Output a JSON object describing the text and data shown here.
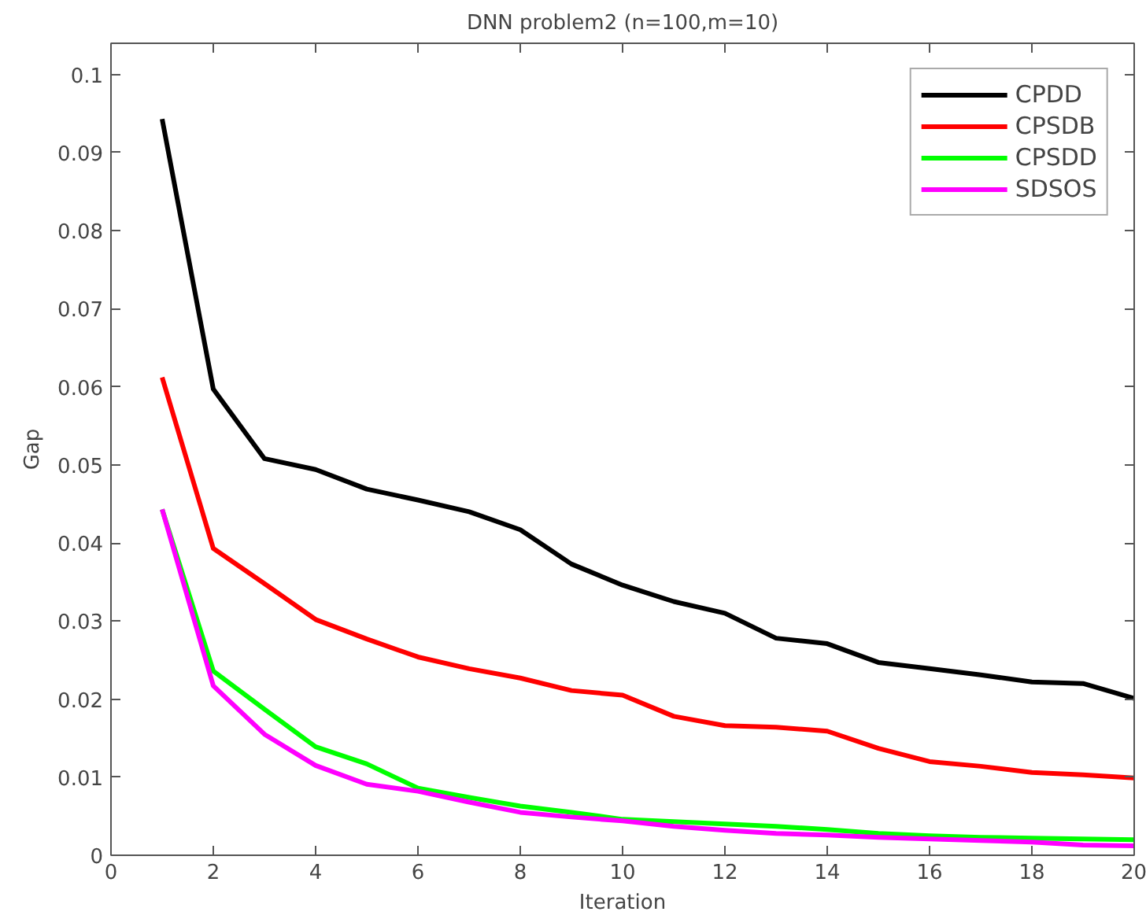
{
  "chart_data": {
    "type": "line",
    "title": "DNN problem2 (n=100,m=10)",
    "xlabel": "Iteration",
    "ylabel": "Gap",
    "x": [
      1,
      2,
      3,
      4,
      5,
      6,
      7,
      8,
      9,
      10,
      11,
      12,
      13,
      14,
      15,
      16,
      17,
      18,
      19,
      20
    ],
    "series": [
      {
        "name": "CPDD",
        "color": "#000000",
        "values": [
          0.0943,
          0.0597,
          0.0508,
          0.0494,
          0.0469,
          0.0455,
          0.044,
          0.0417,
          0.0373,
          0.0346,
          0.0325,
          0.031,
          0.0278,
          0.0271,
          0.0247,
          0.0239,
          0.0231,
          0.0222,
          0.022,
          0.0201
        ]
      },
      {
        "name": "CPSDB",
        "color": "#ff0000",
        "values": [
          0.0612,
          0.0393,
          0.0348,
          0.0302,
          0.0277,
          0.0254,
          0.0239,
          0.0227,
          0.0211,
          0.0205,
          0.0178,
          0.0166,
          0.0164,
          0.0159,
          0.0137,
          0.012,
          0.0114,
          0.0106,
          0.0103,
          0.0099
        ]
      },
      {
        "name": "CPSDD",
        "color": "#00ff00",
        "values": [
          0.0443,
          0.0236,
          0.0187,
          0.0139,
          0.0117,
          0.0086,
          0.0074,
          0.0063,
          0.0055,
          0.0046,
          0.0043,
          0.004,
          0.0037,
          0.0033,
          0.0028,
          0.0025,
          0.0023,
          0.0022,
          0.0021,
          0.002
        ]
      },
      {
        "name": "SDSOS",
        "color": "#ff00ff",
        "values": [
          0.0443,
          0.0217,
          0.0155,
          0.0115,
          0.0091,
          0.0082,
          0.0068,
          0.0055,
          0.0049,
          0.0044,
          0.0037,
          0.0032,
          0.0028,
          0.0026,
          0.0023,
          0.0021,
          0.0019,
          0.0017,
          0.0013,
          0.0012
        ]
      }
    ],
    "xlim": [
      0,
      20
    ],
    "ylim": [
      0,
      0.104
    ],
    "xticks": [
      0,
      2,
      4,
      6,
      8,
      10,
      12,
      14,
      16,
      18,
      20
    ],
    "yticks": [
      0,
      0.01,
      0.02,
      0.03,
      0.04,
      0.05,
      0.06,
      0.07,
      0.08,
      0.09,
      0.1
    ],
    "grid": false,
    "legend": "top right",
    "marker": "none",
    "line_style": "solid"
  }
}
